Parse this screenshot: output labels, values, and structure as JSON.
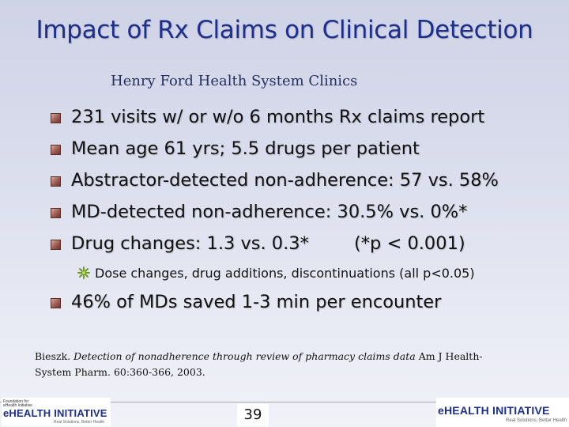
{
  "title": "Impact of Rx Claims on Clinical Detection",
  "subtitle": "Henry Ford Health System Clinics",
  "bullets": [
    "231 visits w/ or w/o 6 months Rx claims report",
    "Mean age 61 yrs; 5.5 drugs per patient",
    "Abstractor-detected non-adherence: 57 vs. 58%",
    "MD-detected non-adherence: 30.5% vs. 0%*",
    "Drug changes: 1.3 vs. 0.3*"
  ],
  "p_note": "(*p < 0.001)",
  "sub_bullet": "Dose changes, drug additions, discontinuations (all p<0.05)",
  "last_bullet": "46% of MDs saved 1-3 min per encounter",
  "reference": {
    "author": "Bieszk.",
    "article": "Detection of nonadherence through review of pharmacy claims data",
    "journal": "Am J Health-System Pharm. 60:360-366, 2003."
  },
  "page_number": "39",
  "logo_left": {
    "small_text": "Foundation for eHealth Initiative",
    "name": "eHEALTH INITIATIVE",
    "tagline": "Real Solutions, Better Health"
  },
  "logo_right": {
    "name": "eHEALTH INITIATIVE",
    "tagline": "Real Solutions, Better Health"
  },
  "colors": {
    "title": "#1c2f8c",
    "bullet_square": "#9a5a4e",
    "sub_bullet_icon": "#6a9a2a"
  }
}
